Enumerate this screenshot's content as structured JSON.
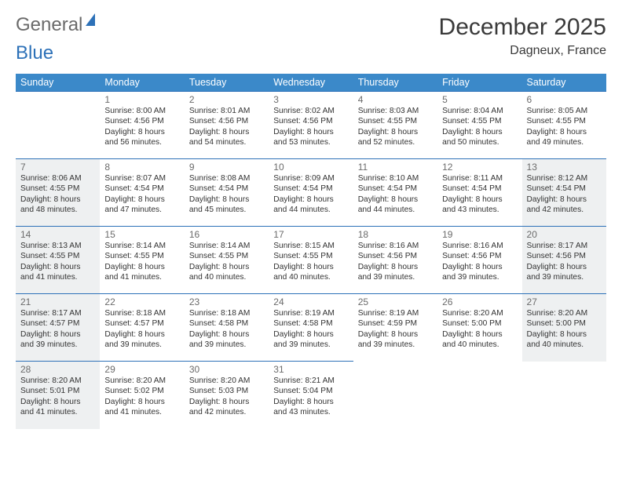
{
  "logo": {
    "text1": "General",
    "text2": "Blue"
  },
  "title": "December 2025",
  "subtitle": "Dagneux, France",
  "weekdays": [
    "Sunday",
    "Monday",
    "Tuesday",
    "Wednesday",
    "Thursday",
    "Friday",
    "Saturday"
  ],
  "colors": {
    "header_bg": "#3b89c9",
    "header_text": "#ffffff",
    "border": "#2d71b8",
    "shaded_bg": "#eef0f1",
    "page_bg": "#ffffff",
    "title_color": "#3a3a3a",
    "logo_gray": "#6a6a6a",
    "logo_blue": "#2d71b8",
    "text_color": "#333333"
  },
  "rows": [
    [
      {
        "empty": true
      },
      {
        "num": "1",
        "sunrise": "Sunrise: 8:00 AM",
        "sunset": "Sunset: 4:56 PM",
        "day1": "Daylight: 8 hours",
        "day2": "and 56 minutes."
      },
      {
        "num": "2",
        "sunrise": "Sunrise: 8:01 AM",
        "sunset": "Sunset: 4:56 PM",
        "day1": "Daylight: 8 hours",
        "day2": "and 54 minutes."
      },
      {
        "num": "3",
        "sunrise": "Sunrise: 8:02 AM",
        "sunset": "Sunset: 4:56 PM",
        "day1": "Daylight: 8 hours",
        "day2": "and 53 minutes."
      },
      {
        "num": "4",
        "sunrise": "Sunrise: 8:03 AM",
        "sunset": "Sunset: 4:55 PM",
        "day1": "Daylight: 8 hours",
        "day2": "and 52 minutes."
      },
      {
        "num": "5",
        "sunrise": "Sunrise: 8:04 AM",
        "sunset": "Sunset: 4:55 PM",
        "day1": "Daylight: 8 hours",
        "day2": "and 50 minutes."
      },
      {
        "num": "6",
        "sunrise": "Sunrise: 8:05 AM",
        "sunset": "Sunset: 4:55 PM",
        "day1": "Daylight: 8 hours",
        "day2": "and 49 minutes."
      }
    ],
    [
      {
        "num": "7",
        "shaded": true,
        "sunrise": "Sunrise: 8:06 AM",
        "sunset": "Sunset: 4:55 PM",
        "day1": "Daylight: 8 hours",
        "day2": "and 48 minutes."
      },
      {
        "num": "8",
        "sunrise": "Sunrise: 8:07 AM",
        "sunset": "Sunset: 4:54 PM",
        "day1": "Daylight: 8 hours",
        "day2": "and 47 minutes."
      },
      {
        "num": "9",
        "sunrise": "Sunrise: 8:08 AM",
        "sunset": "Sunset: 4:54 PM",
        "day1": "Daylight: 8 hours",
        "day2": "and 45 minutes."
      },
      {
        "num": "10",
        "sunrise": "Sunrise: 8:09 AM",
        "sunset": "Sunset: 4:54 PM",
        "day1": "Daylight: 8 hours",
        "day2": "and 44 minutes."
      },
      {
        "num": "11",
        "sunrise": "Sunrise: 8:10 AM",
        "sunset": "Sunset: 4:54 PM",
        "day1": "Daylight: 8 hours",
        "day2": "and 44 minutes."
      },
      {
        "num": "12",
        "sunrise": "Sunrise: 8:11 AM",
        "sunset": "Sunset: 4:54 PM",
        "day1": "Daylight: 8 hours",
        "day2": "and 43 minutes."
      },
      {
        "num": "13",
        "shaded": true,
        "sunrise": "Sunrise: 8:12 AM",
        "sunset": "Sunset: 4:54 PM",
        "day1": "Daylight: 8 hours",
        "day2": "and 42 minutes."
      }
    ],
    [
      {
        "num": "14",
        "shaded": true,
        "sunrise": "Sunrise: 8:13 AM",
        "sunset": "Sunset: 4:55 PM",
        "day1": "Daylight: 8 hours",
        "day2": "and 41 minutes."
      },
      {
        "num": "15",
        "sunrise": "Sunrise: 8:14 AM",
        "sunset": "Sunset: 4:55 PM",
        "day1": "Daylight: 8 hours",
        "day2": "and 41 minutes."
      },
      {
        "num": "16",
        "sunrise": "Sunrise: 8:14 AM",
        "sunset": "Sunset: 4:55 PM",
        "day1": "Daylight: 8 hours",
        "day2": "and 40 minutes."
      },
      {
        "num": "17",
        "sunrise": "Sunrise: 8:15 AM",
        "sunset": "Sunset: 4:55 PM",
        "day1": "Daylight: 8 hours",
        "day2": "and 40 minutes."
      },
      {
        "num": "18",
        "sunrise": "Sunrise: 8:16 AM",
        "sunset": "Sunset: 4:56 PM",
        "day1": "Daylight: 8 hours",
        "day2": "and 39 minutes."
      },
      {
        "num": "19",
        "sunrise": "Sunrise: 8:16 AM",
        "sunset": "Sunset: 4:56 PM",
        "day1": "Daylight: 8 hours",
        "day2": "and 39 minutes."
      },
      {
        "num": "20",
        "shaded": true,
        "sunrise": "Sunrise: 8:17 AM",
        "sunset": "Sunset: 4:56 PM",
        "day1": "Daylight: 8 hours",
        "day2": "and 39 minutes."
      }
    ],
    [
      {
        "num": "21",
        "shaded": true,
        "sunrise": "Sunrise: 8:17 AM",
        "sunset": "Sunset: 4:57 PM",
        "day1": "Daylight: 8 hours",
        "day2": "and 39 minutes."
      },
      {
        "num": "22",
        "sunrise": "Sunrise: 8:18 AM",
        "sunset": "Sunset: 4:57 PM",
        "day1": "Daylight: 8 hours",
        "day2": "and 39 minutes."
      },
      {
        "num": "23",
        "sunrise": "Sunrise: 8:18 AM",
        "sunset": "Sunset: 4:58 PM",
        "day1": "Daylight: 8 hours",
        "day2": "and 39 minutes."
      },
      {
        "num": "24",
        "sunrise": "Sunrise: 8:19 AM",
        "sunset": "Sunset: 4:58 PM",
        "day1": "Daylight: 8 hours",
        "day2": "and 39 minutes."
      },
      {
        "num": "25",
        "sunrise": "Sunrise: 8:19 AM",
        "sunset": "Sunset: 4:59 PM",
        "day1": "Daylight: 8 hours",
        "day2": "and 39 minutes."
      },
      {
        "num": "26",
        "sunrise": "Sunrise: 8:20 AM",
        "sunset": "Sunset: 5:00 PM",
        "day1": "Daylight: 8 hours",
        "day2": "and 40 minutes."
      },
      {
        "num": "27",
        "shaded": true,
        "sunrise": "Sunrise: 8:20 AM",
        "sunset": "Sunset: 5:00 PM",
        "day1": "Daylight: 8 hours",
        "day2": "and 40 minutes."
      }
    ],
    [
      {
        "num": "28",
        "shaded": true,
        "sunrise": "Sunrise: 8:20 AM",
        "sunset": "Sunset: 5:01 PM",
        "day1": "Daylight: 8 hours",
        "day2": "and 41 minutes."
      },
      {
        "num": "29",
        "sunrise": "Sunrise: 8:20 AM",
        "sunset": "Sunset: 5:02 PM",
        "day1": "Daylight: 8 hours",
        "day2": "and 41 minutes."
      },
      {
        "num": "30",
        "sunrise": "Sunrise: 8:20 AM",
        "sunset": "Sunset: 5:03 PM",
        "day1": "Daylight: 8 hours",
        "day2": "and 42 minutes."
      },
      {
        "num": "31",
        "sunrise": "Sunrise: 8:21 AM",
        "sunset": "Sunset: 5:04 PM",
        "day1": "Daylight: 8 hours",
        "day2": "and 43 minutes."
      },
      {
        "empty": true
      },
      {
        "empty": true
      },
      {
        "empty": true
      }
    ]
  ]
}
